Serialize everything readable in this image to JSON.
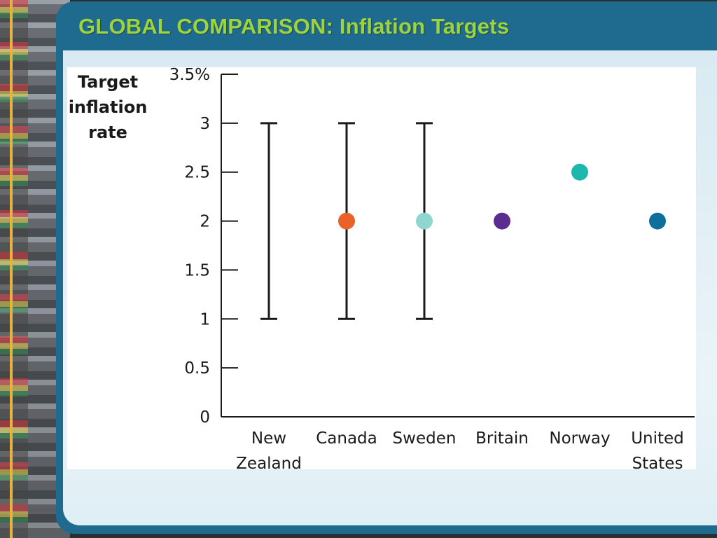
{
  "slide": {
    "title": "GLOBAL COMPARISON: Inflation Targets"
  },
  "chart_data": {
    "type": "scatter",
    "ylabel_lines": [
      "Target",
      "inflation",
      "rate"
    ],
    "ylim": [
      0,
      3.5
    ],
    "yticks": [
      {
        "value": 0,
        "label": "0"
      },
      {
        "value": 0.5,
        "label": "0.5"
      },
      {
        "value": 1,
        "label": "1"
      },
      {
        "value": 1.5,
        "label": "1.5"
      },
      {
        "value": 2,
        "label": "2"
      },
      {
        "value": 2.5,
        "label": "2.5"
      },
      {
        "value": 3,
        "label": "3"
      },
      {
        "value": 3.5,
        "label": "3.5%"
      }
    ],
    "categories": [
      {
        "lines": [
          "New",
          "Zealand"
        ]
      },
      {
        "lines": [
          "Canada"
        ]
      },
      {
        "lines": [
          "Sweden"
        ]
      },
      {
        "lines": [
          "Britain"
        ]
      },
      {
        "lines": [
          "Norway"
        ]
      },
      {
        "lines": [
          "United",
          "States"
        ]
      }
    ],
    "points": [
      {
        "category": "New Zealand",
        "value": null,
        "low": 1,
        "high": 3,
        "color": null
      },
      {
        "category": "Canada",
        "value": 2,
        "low": 1,
        "high": 3,
        "color": "#e8622a"
      },
      {
        "category": "Sweden",
        "value": 2,
        "low": 1,
        "high": 3,
        "color": "#8fd6cf"
      },
      {
        "category": "Britain",
        "value": 2,
        "low": null,
        "high": null,
        "color": "#5b2d91"
      },
      {
        "category": "Norway",
        "value": 2.5,
        "low": null,
        "high": null,
        "color": "#1db8ad"
      },
      {
        "category": "United States",
        "value": 2,
        "low": null,
        "high": null,
        "color": "#0e6e9c"
      }
    ],
    "grid": false,
    "legend": "none"
  }
}
